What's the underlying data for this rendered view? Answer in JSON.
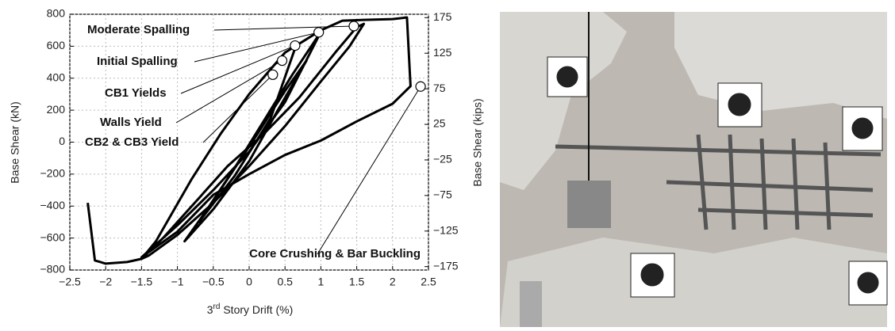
{
  "chart_data": {
    "type": "line",
    "x": [
      -2.25,
      -2.15,
      -2.0,
      -1.7,
      -1.5,
      -1.2,
      -0.8,
      -0.3,
      0.2,
      0.7,
      1.2,
      1.5,
      1.6,
      1.4,
      1.0,
      0.5,
      0,
      -0.5,
      -1.0,
      -1.4,
      -1.5,
      -1.3,
      -0.8,
      -0.4,
      0,
      0.5,
      1.0,
      1.3,
      1.6,
      2.0,
      2.2,
      2.25,
      2.0,
      1.5,
      1.0,
      0.5,
      0,
      -0.5,
      -1.0,
      -1.5,
      -1.0,
      -0.5,
      0,
      0.5,
      1.0,
      0.6,
      0.2,
      -0.2,
      -0.6,
      -0.9,
      -0.5,
      0,
      0.4,
      0.8,
      0.5,
      0.1,
      -0.3,
      -0.7,
      -0.2,
      0.3,
      0.65
    ],
    "series": [
      {
        "name": "Base Shear",
        "color": "#000000",
        "values": [
          -380,
          -740,
          -760,
          -750,
          -730,
          -600,
          -400,
          -150,
          50,
          280,
          560,
          720,
          740,
          600,
          380,
          100,
          -150,
          -380,
          -580,
          -710,
          -730,
          -620,
          -230,
          50,
          300,
          560,
          700,
          760,
          765,
          770,
          780,
          350,
          240,
          130,
          10,
          -80,
          -200,
          -330,
          -560,
          -720,
          -520,
          -300,
          -60,
          250,
          690,
          420,
          130,
          -160,
          -430,
          -620,
          -420,
          -120,
          200,
          510,
          320,
          40,
          -230,
          -500,
          -210,
          150,
          600
        ]
      }
    ],
    "xlim": [
      -2.5,
      2.5
    ],
    "xticks": [
      {
        "value": -2.5,
        "label": "−2.5"
      },
      {
        "value": -2,
        "label": "−2"
      },
      {
        "value": -1.5,
        "label": "−1.5"
      },
      {
        "value": -1,
        "label": "−1"
      },
      {
        "value": -0.5,
        "label": "−0.5"
      },
      0,
      0.5,
      1,
      1.5,
      2,
      2.5
    ],
    "ylim": [
      -800,
      800
    ],
    "yticks": [
      {
        "value": -800,
        "label": "−800"
      },
      {
        "value": -600,
        "label": "−600"
      },
      {
        "value": -400,
        "label": "−400"
      },
      {
        "value": -200,
        "label": "−200"
      },
      0,
      200,
      400,
      600,
      800
    ],
    "y2lim": [
      -179.8,
      179.8
    ],
    "y2ticks": [
      {
        "value": -175,
        "label": "−175"
      },
      {
        "value": -125,
        "label": "−125"
      },
      {
        "value": -75,
        "label": "−75"
      },
      {
        "value": -25,
        "label": "−25"
      },
      25,
      75,
      125,
      175
    ],
    "xlabel": [
      "3",
      "rd",
      " Story Drift (%)"
    ],
    "ylabel": "Base Shear (kN)",
    "y2label": "Base Shear (kips)",
    "grid": true,
    "annotations": [
      {
        "text": "Moderate Spalling",
        "x": 1.46,
        "y": 726
      },
      {
        "text": "Initial Spalling",
        "x": 0.97,
        "y": 687
      },
      {
        "text": "CB1 Yields",
        "x": 0.64,
        "y": 604
      },
      {
        "text": "Walls Yield",
        "x": 0.46,
        "y": 510
      },
      {
        "text": "CB2 & CB3 Yield",
        "x": 0.33,
        "y": 422
      },
      {
        "text": "Core Crushing & Bar Buckling",
        "x": 2.39,
        "y": 348
      }
    ]
  }
}
